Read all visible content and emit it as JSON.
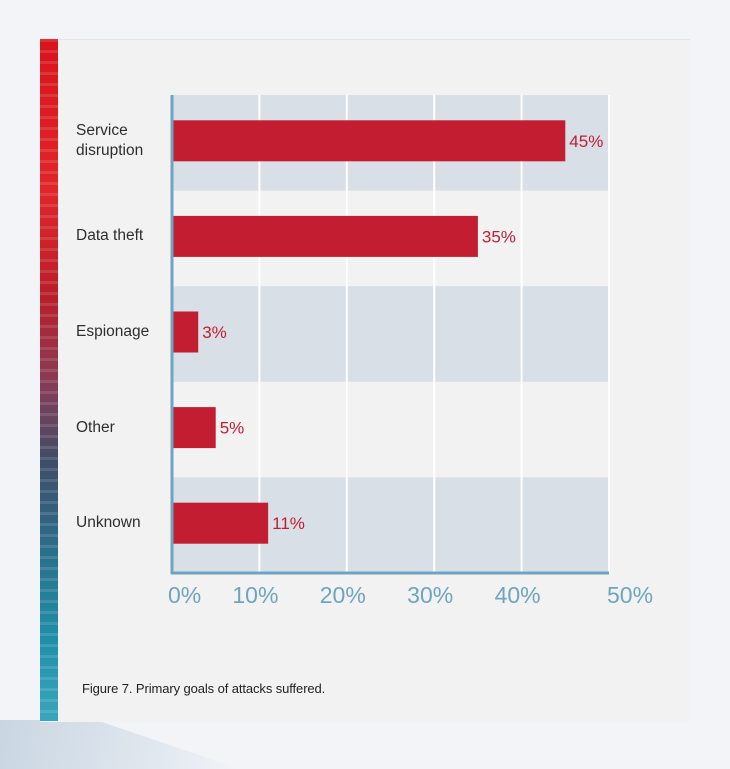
{
  "colors": {
    "bar": "#c21d31",
    "band": "#d8dfe6",
    "axis": "#6fa4c1",
    "tick_text": "#6fa4c1",
    "value_text": "#c21d31",
    "grid": "#ffffff"
  },
  "chart_data": {
    "type": "bar",
    "orientation": "horizontal",
    "categories": [
      "Service\ndisruption",
      "Data theft",
      "Espionage",
      "Other",
      "Unknown"
    ],
    "values": [
      45,
      35,
      3,
      5,
      11
    ],
    "value_labels": [
      "45%",
      "35%",
      "3%",
      "5%",
      "11%"
    ],
    "xlim": [
      0,
      50
    ],
    "xticks": [
      0,
      10,
      20,
      30,
      40,
      50
    ],
    "xtick_labels": [
      "0%",
      "10%",
      "20%",
      "30%",
      "40%",
      "50%"
    ],
    "grid": true,
    "legend": "none",
    "caption": "Figure 7. Primary goals of attacks suffered."
  }
}
